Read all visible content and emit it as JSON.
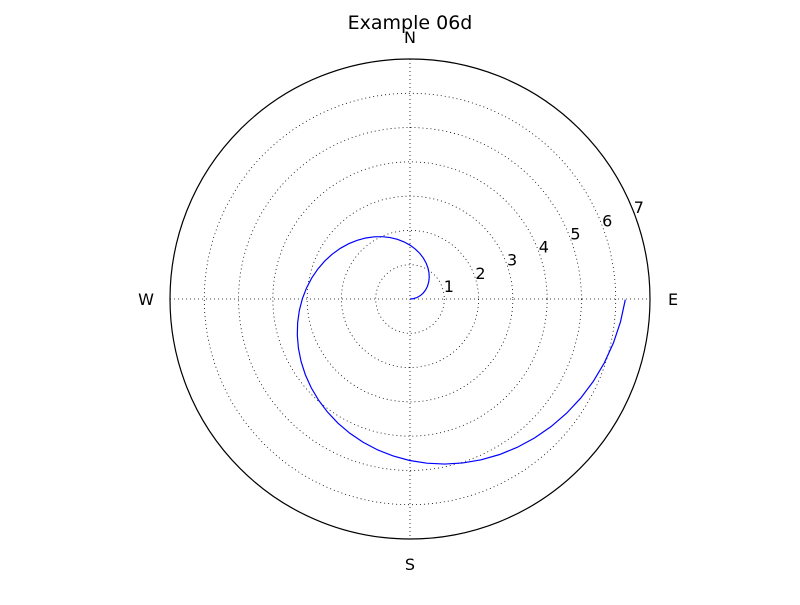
{
  "chart_data": {
    "type": "line",
    "projection": "polar",
    "title": "Example 06d",
    "compass_labels": {
      "north": "N",
      "east": "E",
      "south": "S",
      "west": "W"
    },
    "theta_direction": "counterclockwise",
    "theta_zero": "east",
    "rlim": [
      0,
      7
    ],
    "r_ticks": [
      1,
      2,
      3,
      4,
      5,
      6,
      7
    ],
    "r_tick_labels": [
      "1",
      "2",
      "3",
      "4",
      "5",
      "6",
      "7"
    ],
    "r_label_angle_deg": 22.5,
    "grid": true,
    "grid_style": "dotted",
    "series": [
      {
        "color": "#0000ff",
        "r_equals_theta_in_radians": true,
        "theta_range_rad": [
          0,
          6.28
        ]
      }
    ]
  },
  "colors": {
    "line": "#0000ff",
    "grid": "#000000",
    "frame": "#000000",
    "background": "#ffffff"
  }
}
